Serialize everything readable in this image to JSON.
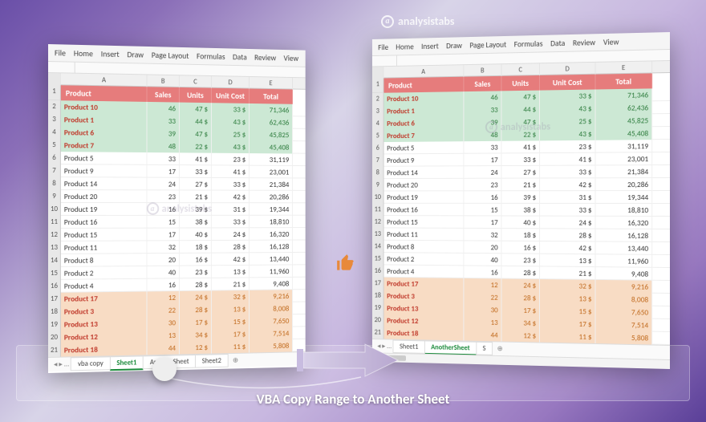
{
  "watermark_text": "analysistabs",
  "caption": "VBA Copy Range to Another Sheet",
  "ribbon_tabs": [
    "File",
    "Home",
    "Insert",
    "Draw",
    "Page Layout",
    "Formulas",
    "Data",
    "Review",
    "View"
  ],
  "columns": [
    "A",
    "B",
    "C",
    "D",
    "E"
  ],
  "headers": {
    "product": "Product",
    "sales": "Sales",
    "units": "Units",
    "unit_cost": "Unit Cost",
    "total": "Total"
  },
  "colors": {
    "header_bg": "#e67c7c",
    "header_fg": "#ffffff",
    "green_bg": "#cce8d4",
    "green_fg": "#2a7a3a",
    "orange_bg": "#f8dcc4",
    "orange_fg": "#c0681a",
    "product_fg": "#c0392b",
    "accent_tab": "#1a8a3a",
    "thumb": "#e8893a"
  },
  "left_sheet": {
    "tabs": [
      "vba copy",
      "Sheet1",
      "AnotherSheet",
      "Sheet2"
    ],
    "active_tab": "Sheet1",
    "rows": [
      {
        "n": 2,
        "style": "green",
        "p": "Product 10",
        "s": 46,
        "u": "47 $",
        "uc": "33 $",
        "t": "71,346"
      },
      {
        "n": 3,
        "style": "green",
        "p": "Product 1",
        "s": 33,
        "u": "44 $",
        "uc": "43 $",
        "t": "62,436"
      },
      {
        "n": 4,
        "style": "green",
        "p": "Product 6",
        "s": 39,
        "u": "47 $",
        "uc": "25 $",
        "t": "45,825"
      },
      {
        "n": 5,
        "style": "green",
        "p": "Product 7",
        "s": 48,
        "u": "22 $",
        "uc": "43 $",
        "t": "45,408"
      },
      {
        "n": 6,
        "style": "",
        "p": "Product 5",
        "s": 33,
        "u": "41 $",
        "uc": "23 $",
        "t": "31,119"
      },
      {
        "n": 7,
        "style": "",
        "p": "Product 9",
        "s": 17,
        "u": "33 $",
        "uc": "41 $",
        "t": "23,001"
      },
      {
        "n": 8,
        "style": "",
        "p": "Product 14",
        "s": 24,
        "u": "27 $",
        "uc": "33 $",
        "t": "21,384"
      },
      {
        "n": 9,
        "style": "",
        "p": "Product 20",
        "s": 23,
        "u": "21 $",
        "uc": "42 $",
        "t": "20,286"
      },
      {
        "n": 10,
        "style": "",
        "p": "Product 19",
        "s": 16,
        "u": "39 $",
        "uc": "31 $",
        "t": "19,344"
      },
      {
        "n": 11,
        "style": "",
        "p": "Product 16",
        "s": 15,
        "u": "38 $",
        "uc": "33 $",
        "t": "18,810"
      },
      {
        "n": 12,
        "style": "",
        "p": "Product 15",
        "s": 17,
        "u": "40 $",
        "uc": "24 $",
        "t": "16,320"
      },
      {
        "n": 13,
        "style": "",
        "p": "Product 11",
        "s": 32,
        "u": "18 $",
        "uc": "28 $",
        "t": "16,128"
      },
      {
        "n": 14,
        "style": "",
        "p": "Product 8",
        "s": 20,
        "u": "16 $",
        "uc": "42 $",
        "t": "13,440"
      },
      {
        "n": 15,
        "style": "",
        "p": "Product 2",
        "s": 40,
        "u": "23 $",
        "uc": "13 $",
        "t": "11,960"
      },
      {
        "n": 16,
        "style": "",
        "p": "Product 4",
        "s": 16,
        "u": "28 $",
        "uc": "21 $",
        "t": "9,408"
      },
      {
        "n": 17,
        "style": "orange",
        "p": "Product 17",
        "s": 12,
        "u": "24 $",
        "uc": "32 $",
        "t": "9,216"
      },
      {
        "n": 18,
        "style": "orange",
        "p": "Product 3",
        "s": 22,
        "u": "28 $",
        "uc": "13 $",
        "t": "8,008"
      },
      {
        "n": 19,
        "style": "orange",
        "p": "Product 13",
        "s": 30,
        "u": "17 $",
        "uc": "15 $",
        "t": "7,650"
      },
      {
        "n": 20,
        "style": "orange",
        "p": "Product 12",
        "s": 13,
        "u": "34 $",
        "uc": "17 $",
        "t": "7,514"
      },
      {
        "n": 21,
        "style": "orange",
        "p": "Product 18",
        "s": 44,
        "u": "12 $",
        "uc": "11 $",
        "t": "5,808"
      }
    ]
  },
  "right_sheet": {
    "tabs": [
      "Sheet1",
      "AnotherSheet",
      "S"
    ],
    "active_tab": "AnotherSheet",
    "rows": [
      {
        "n": 2,
        "style": "green",
        "p": "Product 10",
        "s": 46,
        "u": "47 $",
        "uc": "33  $",
        "t": "71,346"
      },
      {
        "n": 3,
        "style": "green",
        "p": "Product 1",
        "s": 33,
        "u": "44 $",
        "uc": "43  $",
        "t": "62,436"
      },
      {
        "n": 4,
        "style": "green",
        "p": "Product 6",
        "s": 39,
        "u": "47 $",
        "uc": "25  $",
        "t": "45,825"
      },
      {
        "n": 5,
        "style": "green",
        "p": "Product 7",
        "s": 48,
        "u": "22 $",
        "uc": "43  $",
        "t": "45,408"
      },
      {
        "n": 6,
        "style": "",
        "p": "Product 5",
        "s": 33,
        "u": "41 $",
        "uc": "23  $",
        "t": "31,119"
      },
      {
        "n": 7,
        "style": "",
        "p": "Product 9",
        "s": 17,
        "u": "33 $",
        "uc": "41  $",
        "t": "23,001"
      },
      {
        "n": 8,
        "style": "",
        "p": "Product 14",
        "s": 24,
        "u": "27 $",
        "uc": "33  $",
        "t": "21,384"
      },
      {
        "n": 9,
        "style": "",
        "p": "Product 20",
        "s": 23,
        "u": "21 $",
        "uc": "42  $",
        "t": "20,286"
      },
      {
        "n": 10,
        "style": "",
        "p": "Product 19",
        "s": 16,
        "u": "39 $",
        "uc": "31  $",
        "t": "19,344"
      },
      {
        "n": 11,
        "style": "",
        "p": "Product 16",
        "s": 15,
        "u": "38 $",
        "uc": "33  $",
        "t": "18,810"
      },
      {
        "n": 12,
        "style": "",
        "p": "Product 15",
        "s": 17,
        "u": "40 $",
        "uc": "24  $",
        "t": "16,320"
      },
      {
        "n": 13,
        "style": "",
        "p": "Product 11",
        "s": 32,
        "u": "18 $",
        "uc": "28  $",
        "t": "16,128"
      },
      {
        "n": 14,
        "style": "",
        "p": "Product 8",
        "s": 20,
        "u": "16 $",
        "uc": "42  $",
        "t": "13,440"
      },
      {
        "n": 15,
        "style": "",
        "p": "Product 2",
        "s": 40,
        "u": "23 $",
        "uc": "13  $",
        "t": "11,960"
      },
      {
        "n": 16,
        "style": "",
        "p": "Product 4",
        "s": 16,
        "u": "28 $",
        "uc": "21  $",
        "t": "9,408"
      },
      {
        "n": 17,
        "style": "orange",
        "p": "Product 17",
        "s": 12,
        "u": "24 $",
        "uc": "32  $",
        "t": "9,216"
      },
      {
        "n": 18,
        "style": "orange",
        "p": "Product 3",
        "s": 22,
        "u": "28 $",
        "uc": "13  $",
        "t": "8,008"
      },
      {
        "n": 19,
        "style": "orange",
        "p": "Product 13",
        "s": 30,
        "u": "17 $",
        "uc": "15  $",
        "t": "7,650"
      },
      {
        "n": 20,
        "style": "orange",
        "p": "Product 12",
        "s": 13,
        "u": "34 $",
        "uc": "17  $",
        "t": "7,514"
      },
      {
        "n": 21,
        "style": "orange",
        "p": "Product 18",
        "s": 44,
        "u": "12 $",
        "uc": "11  $",
        "t": "5,808"
      }
    ]
  }
}
